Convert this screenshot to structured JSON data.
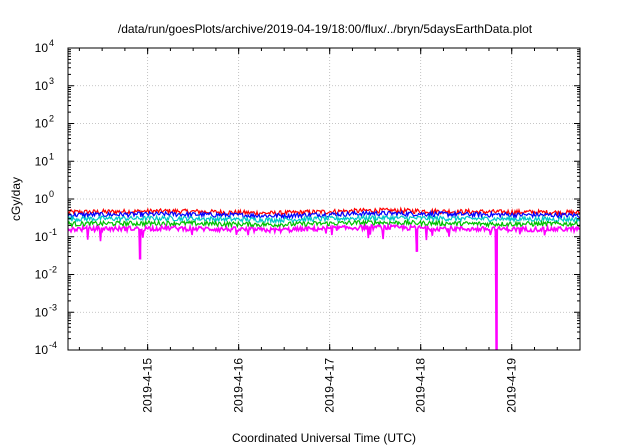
{
  "chart_data": {
    "type": "line",
    "title": "/data/run/goesPlots/archive/2019-04-19/18:00/flux/../bryn/5daysEarthData.plot",
    "xlabel": "Coordinated Universal Time (UTC)",
    "ylabel": "cGy/day",
    "y_scale": "log",
    "ylim": [
      0.0001,
      10000
    ],
    "y_ticks": [
      {
        "value": 0.0001,
        "mantissa": "10",
        "exp": "-4"
      },
      {
        "value": 0.001,
        "mantissa": "10",
        "exp": "-3"
      },
      {
        "value": 0.01,
        "mantissa": "10",
        "exp": "-2"
      },
      {
        "value": 0.1,
        "mantissa": "10",
        "exp": "-1"
      },
      {
        "value": 1,
        "mantissa": "10",
        "exp": "0"
      },
      {
        "value": 10,
        "mantissa": "10",
        "exp": "1"
      },
      {
        "value": 100,
        "mantissa": "10",
        "exp": "2"
      },
      {
        "value": 1000,
        "mantissa": "10",
        "exp": "3"
      },
      {
        "value": 10000,
        "mantissa": "10",
        "exp": "4"
      }
    ],
    "xlim": [
      "2019-04-14 03:00",
      "2019-04-19 18:00"
    ],
    "x_ticks": [
      "2019-4-15",
      "2019-4-16",
      "2019-4-17",
      "2019-4-18",
      "2019-4-19"
    ],
    "x_tick_dates": [
      "2019-04-15 00:00",
      "2019-04-16 00:00",
      "2019-04-17 00:00",
      "2019-04-18 00:00",
      "2019-04-19 00:00"
    ],
    "grid": true,
    "series": [
      {
        "color": "#ff0000",
        "values": [
          0.45,
          0.48,
          0.42,
          0.5,
          0.46,
          0.44
        ]
      },
      {
        "color": "#0000ff",
        "values": [
          0.38,
          0.4,
          0.36,
          0.42,
          0.39,
          0.37
        ]
      },
      {
        "color": "#00c8c8",
        "values": [
          0.3,
          0.31,
          0.28,
          0.32,
          0.3,
          0.29
        ]
      },
      {
        "color": "#00c000",
        "values": [
          0.22,
          0.23,
          0.21,
          0.24,
          0.22,
          0.22
        ]
      },
      {
        "color": "#ff00ff",
        "values": [
          0.16,
          0.17,
          0.15,
          0.18,
          0.16,
          0.16
        ],
        "dips": [
          {
            "date": "2019-04-14 22:00",
            "value": 0.025
          },
          {
            "date": "2019-04-17 23:00",
            "value": 0.04
          },
          {
            "date": "2019-04-18 20:00",
            "value": 0.0001
          }
        ]
      }
    ]
  }
}
